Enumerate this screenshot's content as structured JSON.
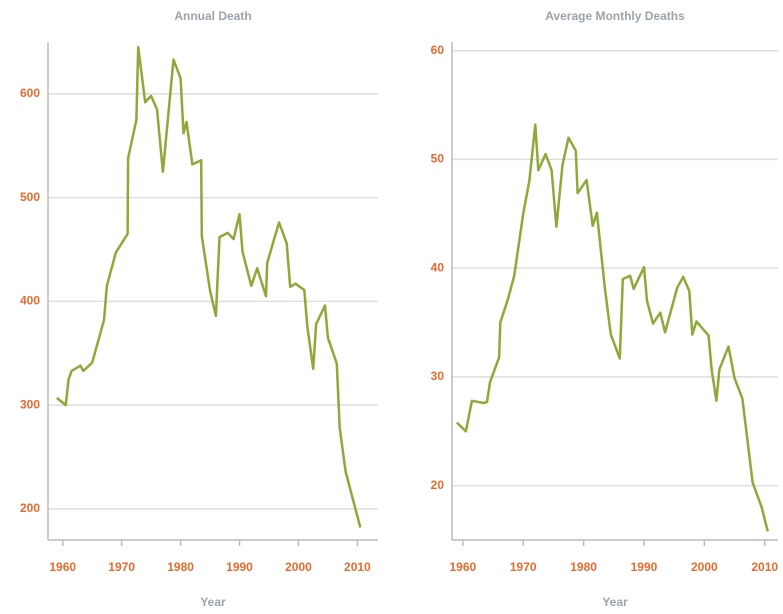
{
  "chart_data": [
    {
      "type": "line",
      "title": "Annual Death",
      "x_label": "Year",
      "xlim": [
        1957.5,
        2013.5
      ],
      "ylim": [
        170,
        650
      ],
      "xticks": [
        1960,
        1970,
        1980,
        1990,
        2000,
        2010
      ],
      "yticks": [
        200,
        300,
        400,
        500,
        600
      ],
      "grid": true,
      "series": [
        {
          "name": "Annual Death",
          "color": "#8ea83a",
          "x": [
            1959,
            1960.5,
            1961,
            1961.5,
            1963,
            1963.5,
            1965,
            1967,
            1967.5,
            1969,
            1971,
            1971.1,
            1972.5,
            1972.8,
            1974,
            1975,
            1976,
            1977,
            1978.8,
            1980,
            1980.5,
            1981,
            1982,
            1983.5,
            1983.6,
            1985,
            1986,
            1986.6,
            1988,
            1989,
            1990,
            1990.5,
            1992,
            1993,
            1994.5,
            1994.7,
            1996.7,
            1998,
            1998.6,
            1999.5,
            2001,
            2001.5,
            2002.5,
            2003,
            2004.5,
            2005,
            2006.5,
            2007,
            2008,
            2010.5
          ],
          "values": [
            307,
            300,
            325,
            333,
            338,
            333,
            341,
            382,
            415,
            447,
            465,
            538,
            575,
            645,
            592,
            598,
            585,
            525,
            633,
            615,
            562,
            573,
            532,
            536,
            463,
            410,
            386,
            462,
            466,
            460,
            484,
            448,
            415,
            432,
            405,
            437,
            476,
            456,
            414,
            417,
            411,
            376,
            335,
            378,
            396,
            365,
            340,
            278,
            236,
            182
          ]
        }
      ]
    },
    {
      "type": "line",
      "title": "Average Monthly Deaths",
      "x_label": "Year",
      "xlim": [
        1958.2,
        2012.2
      ],
      "ylim": [
        15,
        60.8
      ],
      "xticks": [
        1960,
        1970,
        1980,
        1990,
        2000,
        2010
      ],
      "yticks": [
        20,
        30,
        40,
        50,
        60
      ],
      "grid": true,
      "series": [
        {
          "name": "Average Monthly Deaths",
          "color": "#8ea83a",
          "x": [
            1959,
            1960.5,
            1961.5,
            1963.5,
            1964,
            1964.5,
            1966,
            1966.2,
            1967.5,
            1968.5,
            1970,
            1971,
            1972,
            1972.5,
            1973.7,
            1974.7,
            1975.5,
            1976.5,
            1977.5,
            1978.7,
            1979,
            1980.5,
            1981.5,
            1982.2,
            1983.5,
            1984.5,
            1986,
            1986.5,
            1987.7,
            1988.3,
            1990,
            1990.5,
            1991.5,
            1992.7,
            1993.5,
            1995.5,
            1996.5,
            1997.5,
            1998,
            1998.7,
            2000.7,
            2001.2,
            2002,
            2002.5,
            2004,
            2005,
            2006.3,
            2008,
            2009.5,
            2010.5
          ],
          "values": [
            25.8,
            25,
            27.8,
            27.6,
            27.7,
            29.5,
            31.8,
            35,
            37.2,
            39.3,
            45,
            48,
            53.2,
            49,
            50.5,
            49,
            43.8,
            49.5,
            52,
            50.8,
            46.9,
            48.1,
            43.9,
            45.1,
            38.3,
            33.9,
            31.7,
            39,
            39.3,
            38.1,
            40.1,
            37,
            34.9,
            35.9,
            34.1,
            38.2,
            39.2,
            37.9,
            33.9,
            35.1,
            33.8,
            30.7,
            27.8,
            30.7,
            32.8,
            29.9,
            28,
            20.3,
            18,
            15.8
          ]
        }
      ]
    }
  ]
}
